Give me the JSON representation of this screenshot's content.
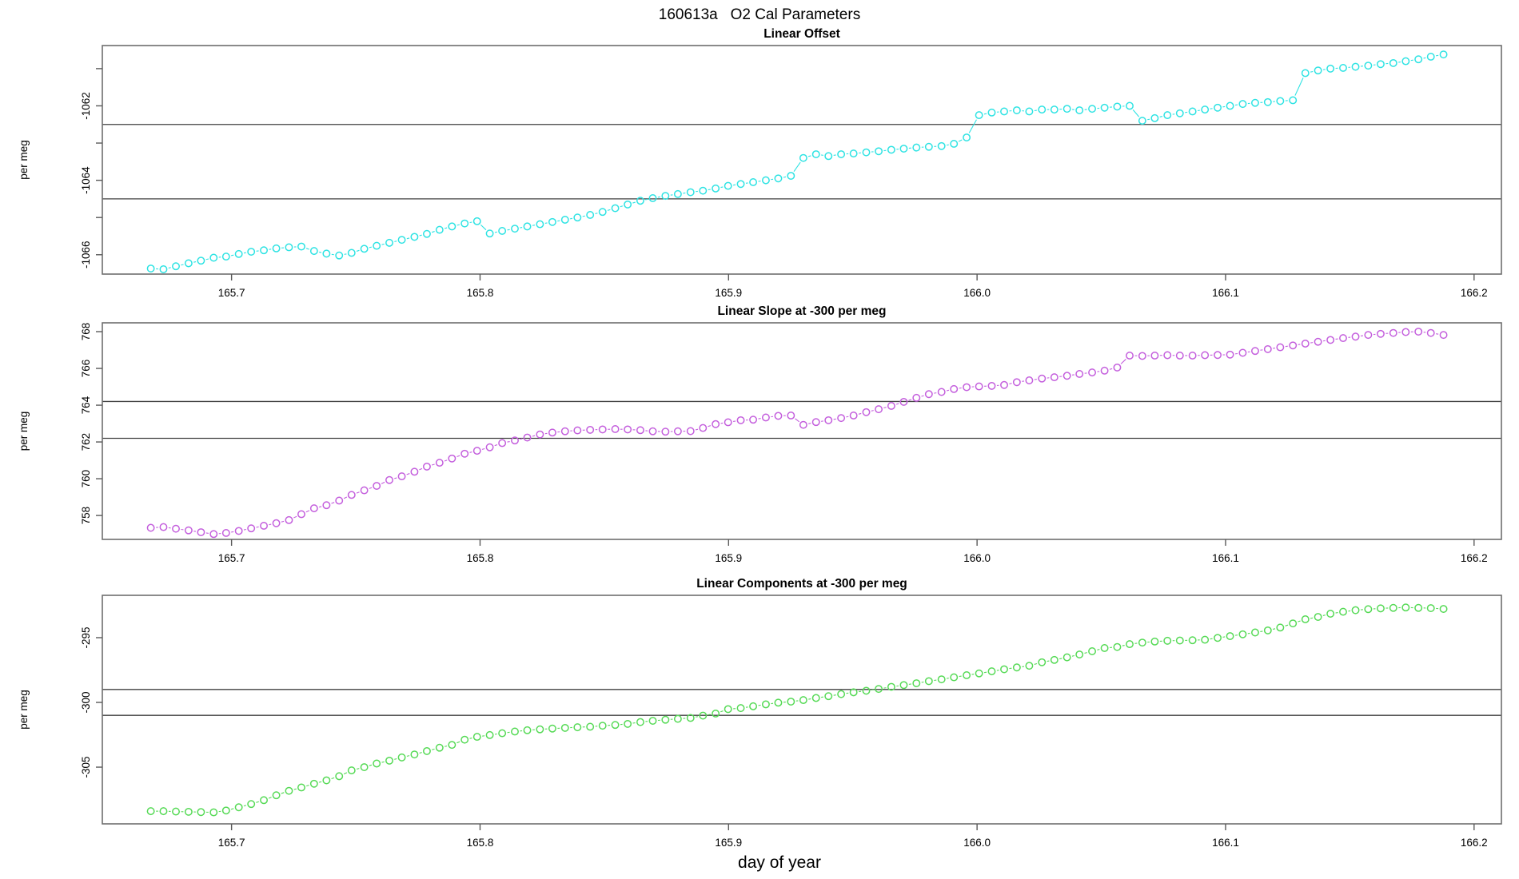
{
  "header": {
    "title": "160613a   O2 Cal Parameters"
  },
  "chart_data": {
    "type": "scatter",
    "title": "160613a   O2 Cal Parameters",
    "xlabel": "day of year",
    "xlim": [
      165.648,
      166.211
    ],
    "x_ticks": [
      165.7,
      165.8,
      165.9,
      166.0,
      166.1,
      166.2
    ],
    "x_tick_labels": [
      "165.7",
      "165.8",
      "165.9",
      "166.0",
      "166.1",
      "166.2"
    ],
    "x_days": [
      165.6675,
      165.6726,
      165.6776,
      165.6827,
      165.6877,
      165.6928,
      165.6978,
      165.7029,
      165.7079,
      165.713,
      165.718,
      165.7231,
      165.7281,
      165.7332,
      165.7382,
      165.7433,
      165.7483,
      165.7534,
      165.7584,
      165.7635,
      165.7685,
      165.7736,
      165.7786,
      165.7837,
      165.7887,
      165.7938,
      165.7988,
      165.8039,
      165.8089,
      165.814,
      165.819,
      165.8241,
      165.8291,
      165.8342,
      165.8392,
      165.8443,
      165.8493,
      165.8544,
      165.8594,
      165.8645,
      165.8695,
      165.8746,
      165.8796,
      165.8847,
      165.8897,
      165.8948,
      165.8998,
      165.9049,
      165.9099,
      165.915,
      165.92,
      165.9251,
      165.9301,
      165.9352,
      165.9402,
      165.9453,
      165.9503,
      165.9554,
      165.9604,
      165.9655,
      165.9705,
      165.9756,
      165.9806,
      165.9857,
      165.9907,
      165.9958,
      166.0008,
      166.0059,
      166.0109,
      166.016,
      166.021,
      166.0261,
      166.0311,
      166.0362,
      166.0412,
      166.0463,
      166.0513,
      166.0564,
      166.0614,
      166.0665,
      166.0715,
      166.0766,
      166.0816,
      166.0867,
      166.0917,
      166.0968,
      166.1018,
      166.1069,
      166.1119,
      166.117,
      166.122,
      166.1271,
      166.1321,
      166.1372,
      166.1422,
      166.1473,
      166.1523,
      166.1574,
      166.1624,
      166.1675,
      166.1725,
      166.1776,
      166.1826,
      166.1877
    ],
    "panels": [
      {
        "title": "Linear Offset",
        "ylabel": "per meg",
        "series_name": "linear_offset",
        "point_color": "#2ee3e3",
        "ylim": [
          -1066.52,
          -1060.38
        ],
        "y_ticks": [
          -1066,
          -1065,
          -1064,
          -1063,
          -1062,
          -1061
        ],
        "y_tick_labels": [
          "-1066",
          "",
          "-1064",
          "",
          "-1062",
          ""
        ],
        "ref_lines": [
          -1062.5,
          -1064.5
        ],
        "values": [
          -1066.37,
          -1066.39,
          -1066.31,
          -1066.23,
          -1066.16,
          -1066.08,
          -1066.05,
          -1065.98,
          -1065.92,
          -1065.88,
          -1065.83,
          -1065.8,
          -1065.78,
          -1065.9,
          -1065.97,
          -1066.02,
          -1065.95,
          -1065.84,
          -1065.76,
          -1065.68,
          -1065.6,
          -1065.52,
          -1065.44,
          -1065.33,
          -1065.24,
          -1065.16,
          -1065.1,
          -1065.43,
          -1065.36,
          -1065.3,
          -1065.24,
          -1065.18,
          -1065.12,
          -1065.06,
          -1065.0,
          -1064.93,
          -1064.85,
          -1064.75,
          -1064.65,
          -1064.55,
          -1064.48,
          -1064.42,
          -1064.37,
          -1064.32,
          -1064.28,
          -1064.22,
          -1064.15,
          -1064.1,
          -1064.05,
          -1064.0,
          -1063.95,
          -1063.88,
          -1063.4,
          -1063.3,
          -1063.35,
          -1063.3,
          -1063.28,
          -1063.25,
          -1063.22,
          -1063.18,
          -1063.15,
          -1063.12,
          -1063.1,
          -1063.08,
          -1063.02,
          -1062.85,
          -1062.25,
          -1062.18,
          -1062.15,
          -1062.12,
          -1062.15,
          -1062.1,
          -1062.1,
          -1062.08,
          -1062.12,
          -1062.08,
          -1062.05,
          -1062.02,
          -1062.0,
          -1062.4,
          -1062.33,
          -1062.25,
          -1062.2,
          -1062.15,
          -1062.1,
          -1062.05,
          -1062.0,
          -1061.95,
          -1061.92,
          -1061.9,
          -1061.87,
          -1061.85,
          -1061.12,
          -1061.05,
          -1061.0,
          -1060.98,
          -1060.95,
          -1060.92,
          -1060.88,
          -1060.85,
          -1060.8,
          -1060.75,
          -1060.68,
          -1060.62
        ]
      },
      {
        "title": "Linear Slope at -300 per meg",
        "ylabel": "per meg",
        "series_name": "linear_slope",
        "point_color": "#c45fdd",
        "ylim": [
          756.7,
          768.48
        ],
        "y_ticks": [
          758,
          760,
          762,
          764,
          766,
          768
        ],
        "y_tick_labels": [
          "758",
          "760",
          "762",
          "764",
          "766",
          "768"
        ],
        "ref_lines": [
          762.2,
          764.2
        ],
        "values": [
          757.33,
          757.37,
          757.28,
          757.19,
          757.09,
          756.99,
          757.05,
          757.16,
          757.3,
          757.44,
          757.58,
          757.75,
          758.07,
          758.39,
          758.56,
          758.81,
          759.12,
          759.37,
          759.61,
          759.93,
          760.13,
          760.38,
          760.66,
          760.87,
          761.1,
          761.36,
          761.52,
          761.71,
          761.94,
          762.08,
          762.24,
          762.41,
          762.51,
          762.58,
          762.63,
          762.66,
          762.68,
          762.7,
          762.68,
          762.64,
          762.58,
          762.56,
          762.58,
          762.59,
          762.76,
          762.97,
          763.07,
          763.18,
          763.21,
          763.33,
          763.42,
          763.44,
          762.93,
          763.08,
          763.18,
          763.3,
          763.44,
          763.62,
          763.78,
          763.96,
          764.18,
          764.4,
          764.6,
          764.72,
          764.88,
          764.98,
          765.02,
          765.05,
          765.1,
          765.25,
          765.35,
          765.45,
          765.52,
          765.6,
          765.7,
          765.78,
          765.88,
          766.05,
          766.7,
          766.68,
          766.7,
          766.72,
          766.7,
          766.7,
          766.72,
          766.73,
          766.75,
          766.85,
          766.95,
          767.05,
          767.15,
          767.25,
          767.35,
          767.45,
          767.55,
          767.65,
          767.73,
          767.82,
          767.88,
          767.93,
          767.98,
          768.0,
          767.93,
          767.82
        ]
      },
      {
        "title": "Linear Components at -300 per meg",
        "ylabel": "per meg",
        "series_name": "linear_components",
        "point_color": "#56da56",
        "ylim": [
          -309.38,
          -291.73
        ],
        "y_ticks": [
          -305,
          -300,
          -295
        ],
        "y_tick_labels": [
          "-305",
          "-300",
          "-295"
        ],
        "ref_lines": [
          -299,
          -301
        ],
        "values": [
          -308.4,
          -308.4,
          -308.43,
          -308.45,
          -308.47,
          -308.49,
          -308.35,
          -308.1,
          -307.85,
          -307.55,
          -307.17,
          -306.83,
          -306.57,
          -306.28,
          -306.02,
          -305.7,
          -305.25,
          -305.0,
          -304.72,
          -304.5,
          -304.25,
          -304.02,
          -303.76,
          -303.5,
          -303.28,
          -302.88,
          -302.66,
          -302.52,
          -302.38,
          -302.25,
          -302.15,
          -302.08,
          -302.02,
          -301.97,
          -301.92,
          -301.88,
          -301.8,
          -301.74,
          -301.66,
          -301.52,
          -301.42,
          -301.34,
          -301.27,
          -301.2,
          -301.02,
          -300.86,
          -300.52,
          -300.44,
          -300.3,
          -300.15,
          -300.02,
          -299.94,
          -299.82,
          -299.66,
          -299.52,
          -299.36,
          -299.22,
          -299.1,
          -298.96,
          -298.8,
          -298.66,
          -298.52,
          -298.36,
          -298.22,
          -298.06,
          -297.9,
          -297.76,
          -297.6,
          -297.44,
          -297.3,
          -297.17,
          -296.9,
          -296.72,
          -296.52,
          -296.3,
          -296.05,
          -295.8,
          -295.72,
          -295.5,
          -295.38,
          -295.3,
          -295.24,
          -295.22,
          -295.2,
          -295.16,
          -295.02,
          -294.88,
          -294.74,
          -294.6,
          -294.44,
          -294.22,
          -293.9,
          -293.58,
          -293.4,
          -293.15,
          -293.0,
          -292.88,
          -292.8,
          -292.74,
          -292.7,
          -292.67,
          -292.7,
          -292.72,
          -292.78
        ]
      }
    ]
  }
}
